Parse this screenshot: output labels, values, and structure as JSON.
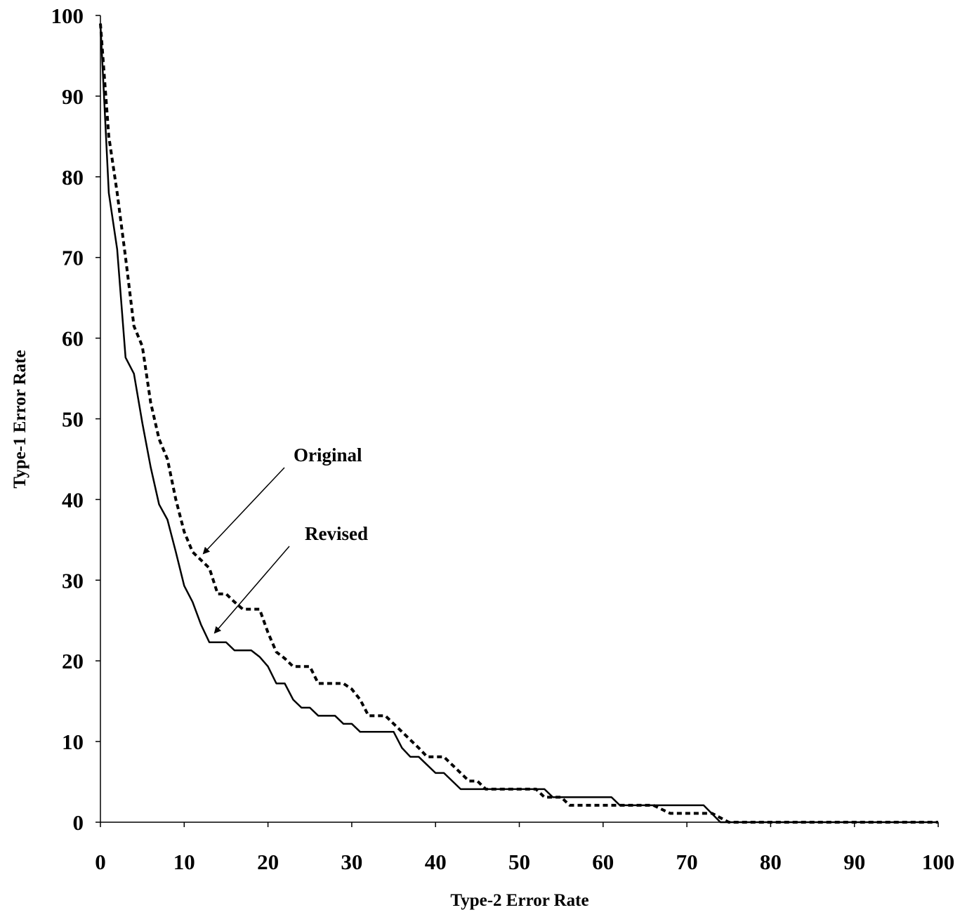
{
  "chart_data": {
    "type": "line",
    "x_label": "Type-2 Error Rate",
    "y_label": "Type-1 Error Rate",
    "xlim": [
      0,
      100
    ],
    "ylim": [
      0,
      100
    ],
    "xticks": [
      0,
      10,
      20,
      30,
      40,
      50,
      60,
      70,
      80,
      90,
      100
    ],
    "yticks": [
      0,
      10,
      20,
      30,
      40,
      50,
      60,
      70,
      80,
      90,
      100
    ],
    "grid": false,
    "series": [
      {
        "name": "Original",
        "color": "#000000",
        "dash": true,
        "x": [
          0,
          1,
          2,
          3,
          4,
          5,
          6,
          7,
          8,
          9,
          10,
          11,
          12,
          13,
          14,
          15,
          16,
          17,
          19,
          20,
          21,
          22,
          23,
          25,
          26,
          29,
          30,
          31,
          32,
          34,
          35,
          36,
          37,
          38,
          39,
          41,
          42,
          43,
          44,
          45,
          46,
          52,
          53,
          55,
          56,
          66,
          68,
          73,
          75,
          100
        ],
        "values": [
          99,
          85,
          78,
          70,
          61.5,
          59,
          52,
          47.5,
          45,
          40,
          36,
          33.5,
          32.5,
          31.5,
          28.3,
          28.3,
          27.3,
          26.4,
          26.4,
          23.5,
          21.1,
          20.3,
          19.3,
          19.3,
          17.2,
          17.2,
          16.5,
          15.2,
          13.2,
          13.2,
          12.2,
          11.2,
          10.2,
          9.2,
          8.1,
          8.1,
          7.1,
          6.1,
          5.1,
          5.1,
          4.1,
          4.1,
          3.1,
          3.1,
          2.1,
          2.1,
          1.1,
          1.1,
          0,
          0
        ]
      },
      {
        "name": "Revised",
        "color": "#000000",
        "dash": false,
        "x": [
          0,
          1,
          2,
          3,
          4,
          5,
          6,
          7,
          8,
          9,
          10,
          11,
          12,
          13,
          15,
          16,
          18,
          19,
          20,
          21,
          22,
          23,
          24,
          25,
          26,
          28,
          29,
          30,
          31,
          35,
          36,
          37,
          38,
          39,
          40,
          41,
          42,
          43,
          53,
          54,
          61,
          62,
          72,
          74,
          100
        ],
        "values": [
          99,
          78,
          71,
          57.6,
          55.6,
          49.5,
          44,
          39.4,
          37.5,
          33.5,
          29.3,
          27.3,
          24.5,
          22.3,
          22.3,
          21.3,
          21.3,
          20.5,
          19.3,
          17.2,
          17.2,
          15.2,
          14.2,
          14.2,
          13.2,
          13.2,
          12.2,
          12.2,
          11.2,
          11.2,
          9.2,
          8.1,
          8.1,
          7.1,
          6.1,
          6.1,
          5.1,
          4.1,
          4.1,
          3.1,
          3.1,
          2.1,
          2.1,
          0,
          0
        ]
      }
    ]
  }
}
